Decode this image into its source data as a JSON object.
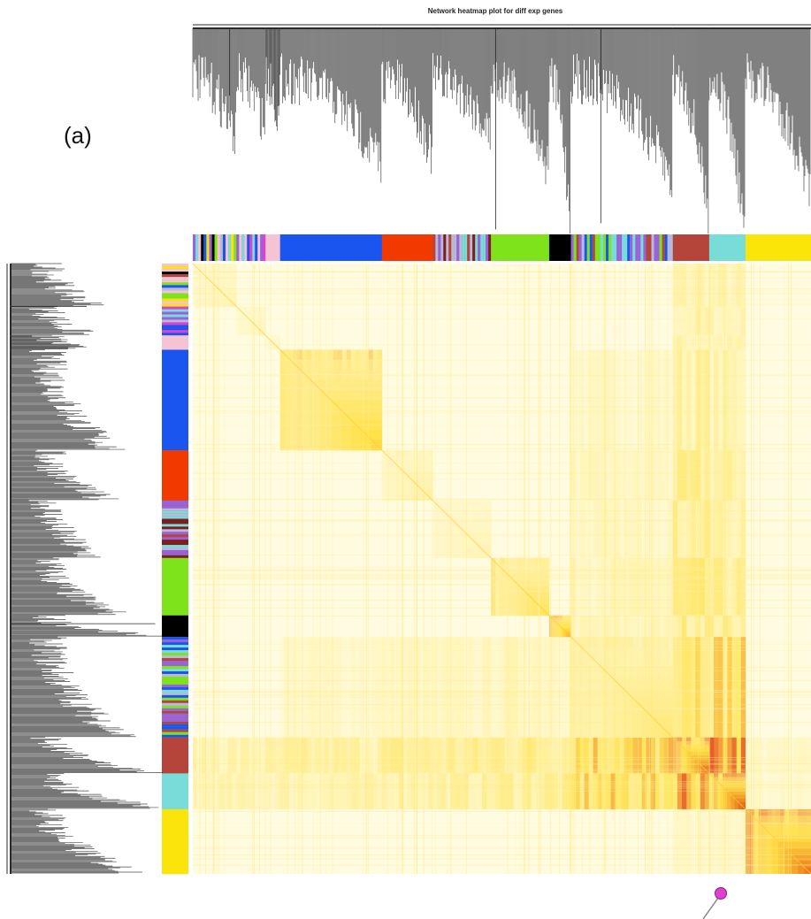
{
  "chart_data": {
    "type": "heatmap",
    "title": "Network heatmap plot for diff exp genes",
    "panel_label": "(a)",
    "colors": {
      "heat_low": "#fffbe0",
      "heat_mid": "#ffe040",
      "heat_high": "#e03000",
      "dendrogram": "#2a2a2a",
      "marker": "#e040d0"
    },
    "modules": [
      {
        "color": "mixed_grey_lavender",
        "size": 6
      },
      {
        "color": "mixed_violet",
        "size": 4
      },
      {
        "color": "pink",
        "size": 2
      },
      {
        "color": "blue",
        "size": 14
      },
      {
        "color": "orangered",
        "size": 7
      },
      {
        "color": "mixed_brown_turquoise",
        "size": 8
      },
      {
        "color": "greenyellow",
        "size": 8
      },
      {
        "color": "black",
        "size": 3
      },
      {
        "color": "mixed_turquoise_brown",
        "size": 14
      },
      {
        "color": "brown",
        "size": 5
      },
      {
        "color": "turquoise",
        "size": 5
      },
      {
        "color": "yellow",
        "size": 9
      }
    ],
    "module_fill": {
      "mixed_grey_lavender": "#b9b9d9",
      "mixed_violet": "#9a62d8",
      "pink": "#f6c3d2",
      "blue": "#1a55f0",
      "orangered": "#f23a00",
      "mixed_brown_turquoise": "#b5554a",
      "greenyellow": "#7ee31a",
      "black": "#000000",
      "mixed_turquoise_brown": "#6fcfca",
      "brown": "#b5453a",
      "turquoise": "#78ddd8",
      "yellow": "#fbe40a"
    },
    "module_intra_intensity": [
      0.15,
      0.12,
      0.12,
      0.55,
      0.2,
      0.15,
      0.45,
      0.7,
      0.35,
      0.9,
      0.95,
      0.85
    ],
    "module_inter_intensity": [
      [
        0.15,
        0.05,
        0.05,
        0.05,
        0.05,
        0.05,
        0.05,
        0.05,
        0.08,
        0.2,
        0.18,
        0.05
      ],
      [
        0.05,
        0.12,
        0.05,
        0.05,
        0.05,
        0.05,
        0.05,
        0.05,
        0.08,
        0.2,
        0.18,
        0.05
      ],
      [
        0.05,
        0.05,
        0.12,
        0.05,
        0.05,
        0.05,
        0.05,
        0.05,
        0.08,
        0.2,
        0.18,
        0.05
      ],
      [
        0.05,
        0.05,
        0.05,
        0.55,
        0.08,
        0.05,
        0.05,
        0.05,
        0.1,
        0.25,
        0.2,
        0.08
      ],
      [
        0.05,
        0.05,
        0.05,
        0.08,
        0.2,
        0.08,
        0.08,
        0.05,
        0.12,
        0.3,
        0.25,
        0.05
      ],
      [
        0.05,
        0.05,
        0.05,
        0.05,
        0.08,
        0.15,
        0.08,
        0.05,
        0.12,
        0.3,
        0.25,
        0.05
      ],
      [
        0.05,
        0.05,
        0.05,
        0.05,
        0.08,
        0.08,
        0.45,
        0.08,
        0.15,
        0.35,
        0.3,
        0.05
      ],
      [
        0.05,
        0.05,
        0.05,
        0.05,
        0.05,
        0.05,
        0.08,
        0.7,
        0.15,
        0.35,
        0.3,
        0.05
      ],
      [
        0.08,
        0.08,
        0.08,
        0.1,
        0.12,
        0.12,
        0.15,
        0.15,
        0.35,
        0.6,
        0.55,
        0.08
      ],
      [
        0.2,
        0.2,
        0.2,
        0.25,
        0.3,
        0.3,
        0.35,
        0.35,
        0.6,
        0.9,
        0.85,
        0.1
      ],
      [
        0.18,
        0.18,
        0.18,
        0.2,
        0.25,
        0.25,
        0.3,
        0.3,
        0.55,
        0.85,
        0.95,
        0.1
      ],
      [
        0.05,
        0.05,
        0.05,
        0.08,
        0.05,
        0.05,
        0.05,
        0.05,
        0.08,
        0.1,
        0.1,
        0.85
      ]
    ]
  }
}
